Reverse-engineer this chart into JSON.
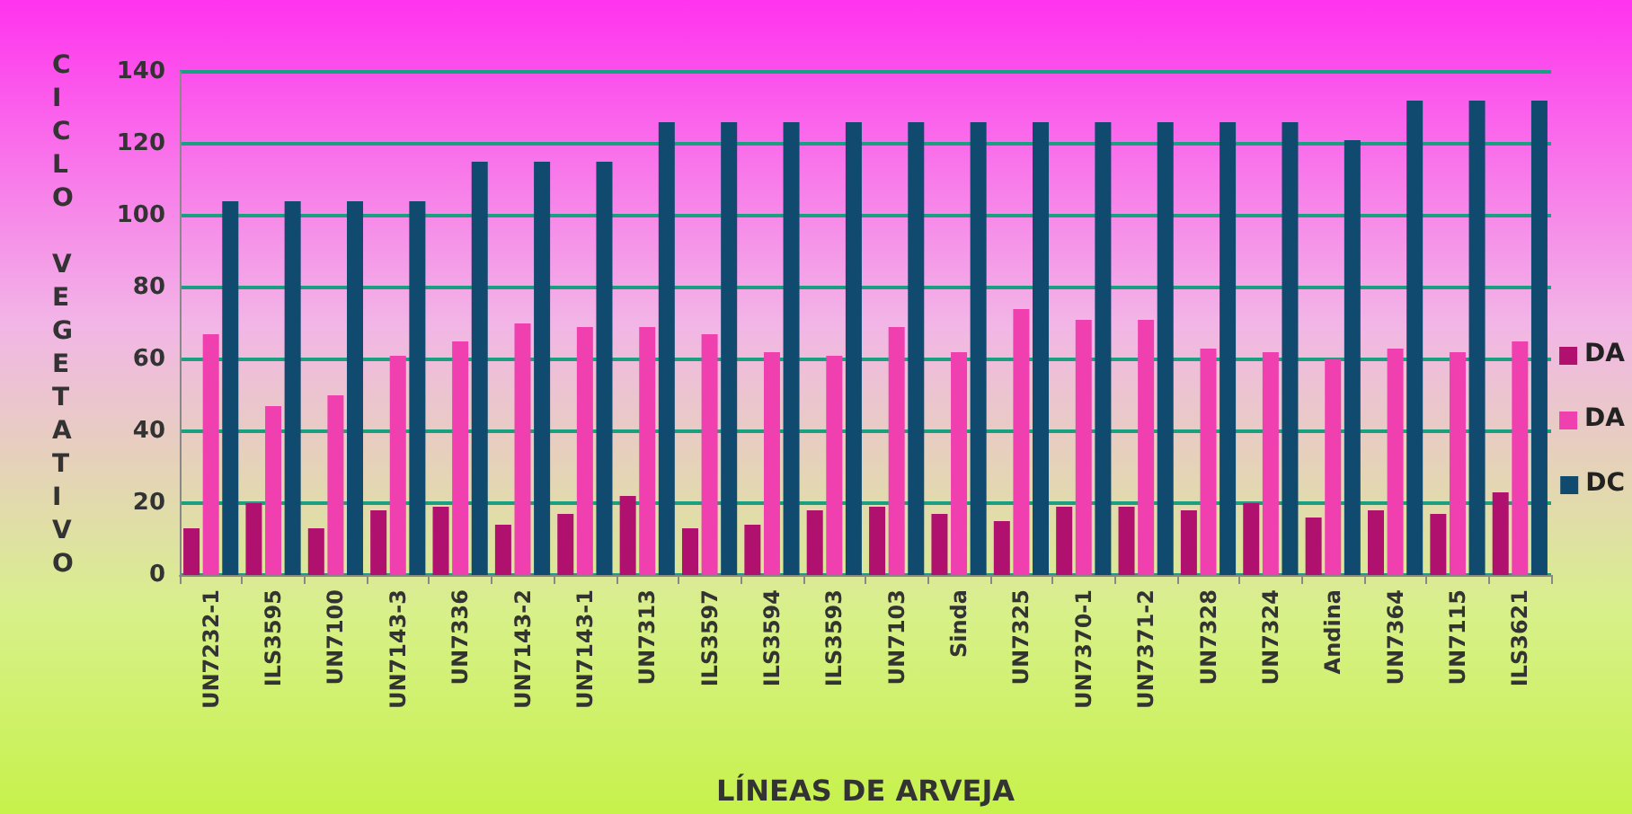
{
  "chart_data": {
    "type": "bar",
    "xlabel": "LÍNEAS DE ARVEJA",
    "ylabel": "CICLO VEGETATIVO",
    "categories": [
      "UN7232-1",
      "ILS3595",
      "UN7100",
      "UN7143-3",
      "UN7336",
      "UN7143-2",
      "UN7143-1",
      "UN7313",
      "ILS3597",
      "ILS3594",
      "ILS3593",
      "UN7103",
      "Sinda",
      "UN7325",
      "UN7370-1",
      "UN7371-2",
      "UN7328",
      "UN7324",
      "Andina",
      "UN7364",
      "UN7115",
      "ILS3621"
    ],
    "series": [
      {
        "name": "DA",
        "color": "#b0106e",
        "values": [
          13,
          20,
          13,
          18,
          19,
          14,
          17,
          22,
          13,
          14,
          18,
          19,
          17,
          15,
          19,
          19,
          18,
          20,
          16,
          18,
          17,
          23
        ]
      },
      {
        "name": "DA",
        "color": "#f040b0",
        "values": [
          67,
          47,
          50,
          61,
          65,
          70,
          69,
          69,
          67,
          62,
          61,
          69,
          62,
          74,
          71,
          71,
          63,
          62,
          60,
          63,
          62,
          65
        ]
      },
      {
        "name": "DC",
        "color": "#104a6e",
        "values": [
          104,
          104,
          104,
          104,
          115,
          115,
          115,
          126,
          126,
          126,
          126,
          126,
          126,
          126,
          126,
          126,
          126,
          126,
          121,
          132,
          132,
          132
        ]
      }
    ],
    "ylim": [
      0,
      140
    ],
    "yticks": [
      0,
      20,
      40,
      60,
      80,
      100,
      120,
      140
    ],
    "grid": "y",
    "legend": "right"
  }
}
